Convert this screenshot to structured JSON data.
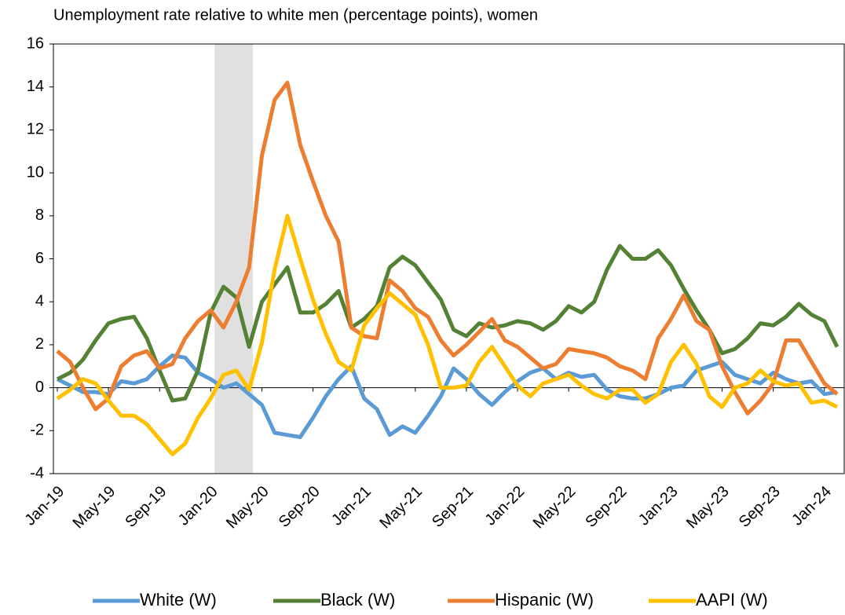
{
  "chart_data": {
    "type": "line",
    "title": "Unemployment rate relative to white men (percentage points), women",
    "categories": [
      "Jan-19",
      null,
      null,
      null,
      "May-19",
      null,
      null,
      null,
      "Sep-19",
      null,
      null,
      null,
      "Jan-20",
      null,
      null,
      null,
      "May-20",
      null,
      null,
      null,
      "Sep-20",
      null,
      null,
      null,
      "Jan-21",
      null,
      null,
      null,
      "May-21",
      null,
      null,
      null,
      "Sep-21",
      null,
      null,
      null,
      "Jan-22",
      null,
      null,
      null,
      "May-22",
      null,
      null,
      null,
      "Sep-22",
      null,
      null,
      null,
      "Jan-23",
      null,
      null,
      null,
      "May-23",
      null,
      null,
      null,
      "Sep-23",
      null,
      null,
      null,
      "Jan-24",
      null
    ],
    "series": [
      {
        "name": "White (W)",
        "color": "#5b9bd5",
        "values": [
          0.4,
          0.1,
          -0.2,
          -0.2,
          -0.3,
          0.3,
          0.2,
          0.4,
          1.0,
          1.5,
          1.4,
          0.7,
          0.4,
          0.0,
          0.2,
          -0.3,
          -0.8,
          -2.1,
          -2.2,
          -2.3,
          -1.4,
          -0.4,
          0.4,
          1.0,
          -0.5,
          -1.0,
          -2.2,
          -1.8,
          -2.1,
          -1.3,
          -0.4,
          0.9,
          0.4,
          -0.3,
          -0.8,
          -0.2,
          0.3,
          0.7,
          0.9,
          0.4,
          0.7,
          0.5,
          0.6,
          -0.1,
          -0.4,
          -0.5,
          -0.5,
          -0.3,
          0.0,
          0.1,
          0.8,
          1.0,
          1.2,
          0.6,
          0.4,
          0.2,
          0.7,
          0.4,
          0.2,
          0.3,
          -0.3,
          -0.2
        ]
      },
      {
        "name": "Black (W)",
        "color": "#548235",
        "values": [
          0.4,
          0.7,
          1.3,
          2.2,
          3.0,
          3.2,
          3.3,
          2.3,
          0.8,
          -0.6,
          -0.5,
          0.8,
          3.5,
          4.7,
          4.2,
          1.9,
          4.0,
          4.8,
          5.6,
          3.5,
          3.5,
          3.9,
          4.5,
          2.8,
          3.2,
          3.8,
          5.6,
          6.1,
          5.7,
          4.9,
          4.1,
          2.7,
          2.4,
          3.0,
          2.8,
          2.9,
          3.1,
          3.0,
          2.7,
          3.1,
          3.8,
          3.5,
          4.0,
          5.5,
          6.6,
          6.0,
          6.0,
          6.4,
          5.7,
          4.6,
          3.6,
          2.7,
          1.6,
          1.8,
          2.3,
          3.0,
          2.9,
          3.3,
          3.9,
          3.4,
          3.1,
          1.9
        ]
      },
      {
        "name": "Hispanic (W)",
        "color": "#ed7d31",
        "values": [
          1.7,
          1.2,
          0.0,
          -1.0,
          -0.5,
          1.0,
          1.5,
          1.7,
          0.9,
          1.1,
          2.3,
          3.1,
          3.6,
          2.8,
          4.0,
          5.6,
          10.8,
          13.4,
          14.2,
          11.3,
          9.6,
          8.0,
          6.8,
          2.8,
          2.4,
          2.3,
          5.0,
          4.5,
          3.7,
          3.3,
          2.2,
          1.5,
          2.0,
          2.6,
          3.2,
          2.2,
          1.9,
          1.4,
          0.9,
          1.1,
          1.8,
          1.7,
          1.6,
          1.4,
          1.0,
          0.8,
          0.4,
          2.3,
          3.2,
          4.3,
          3.1,
          2.7,
          1.0,
          -0.2,
          -1.2,
          -0.6,
          0.2,
          2.2,
          2.2,
          1.2,
          0.2,
          -0.3
        ]
      },
      {
        "name": "AAPI (W)",
        "color": "#ffc000",
        "values": [
          -0.5,
          -0.1,
          0.4,
          0.2,
          -0.6,
          -1.3,
          -1.3,
          -1.7,
          -2.4,
          -3.1,
          -2.6,
          -1.4,
          -0.5,
          0.6,
          0.8,
          -0.1,
          2.1,
          5.5,
          8.0,
          6.0,
          4.1,
          2.5,
          1.2,
          0.8,
          2.9,
          3.7,
          4.4,
          3.9,
          3.4,
          2.0,
          0.0,
          0.0,
          0.1,
          1.2,
          1.9,
          1.0,
          0.1,
          -0.4,
          0.2,
          0.4,
          0.6,
          0.1,
          -0.3,
          -0.5,
          -0.1,
          -0.1,
          -0.7,
          -0.3,
          1.2,
          2.0,
          1.1,
          -0.4,
          -0.9,
          0.0,
          0.2,
          0.8,
          0.3,
          0.1,
          0.2,
          -0.7,
          -0.6,
          -0.9
        ]
      }
    ],
    "ylim": [
      -4,
      16
    ],
    "yticks": [
      -4,
      -2,
      0,
      2,
      4,
      6,
      8,
      10,
      12,
      14,
      16
    ]
  }
}
